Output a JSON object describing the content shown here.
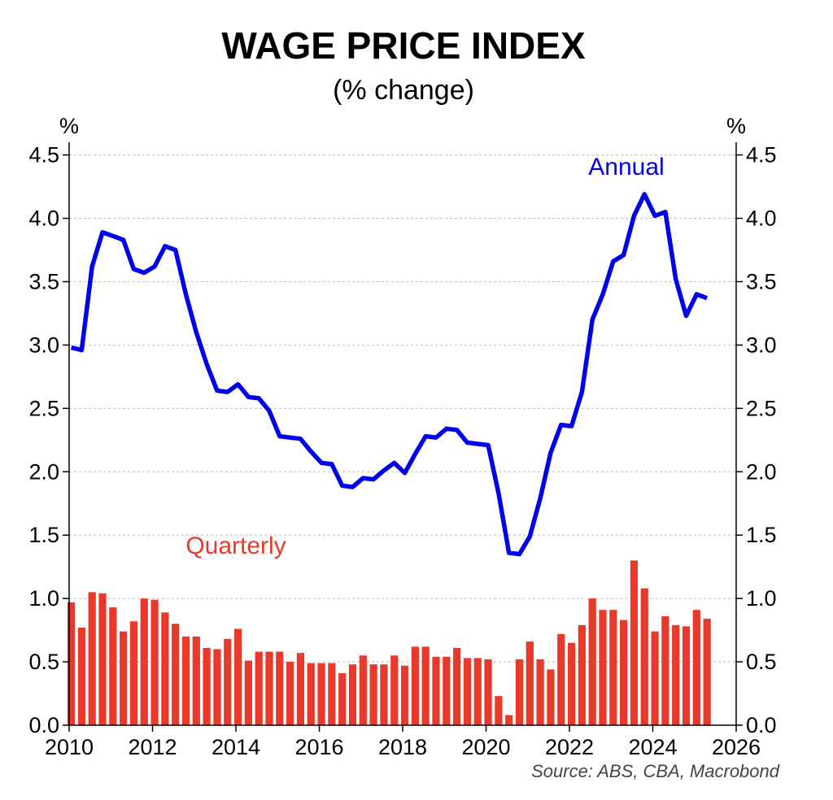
{
  "chart_data": {
    "type": "bar+line",
    "title": "WAGE PRICE INDEX",
    "subtitle": "(% change)",
    "y_unit_left": "%",
    "y_unit_right": "%",
    "ylim": [
      0,
      4.6
    ],
    "yticks": [
      "0.0",
      "0.5",
      "1.0",
      "1.5",
      "2.0",
      "2.5",
      "3.0",
      "3.5",
      "4.0",
      "4.5"
    ],
    "ytick_values": [
      0,
      0.5,
      1.0,
      1.5,
      2.0,
      2.5,
      3.0,
      3.5,
      4.0,
      4.5
    ],
    "xlim": [
      2010,
      2026
    ],
    "xticks": [
      "2010",
      "2012",
      "2014",
      "2016",
      "2018",
      "2020",
      "2022",
      "2024",
      "2026"
    ],
    "xtick_values": [
      2010,
      2012,
      2014,
      2016,
      2018,
      2020,
      2022,
      2024,
      2026
    ],
    "grid": true,
    "source": "Source: ABS, CBA, Macrobond",
    "colors": {
      "annual": "#0000ee",
      "quarterly": "#e8392b",
      "grid": "#bbbbbb"
    },
    "series": [
      {
        "name": "Annual",
        "kind": "line",
        "x": [
          2010.0,
          2010.25,
          2010.5,
          2010.75,
          2011.0,
          2011.25,
          2011.5,
          2011.75,
          2012.0,
          2012.25,
          2012.5,
          2012.75,
          2013.0,
          2013.25,
          2013.5,
          2013.75,
          2014.0,
          2014.25,
          2014.5,
          2014.75,
          2015.0,
          2015.25,
          2015.5,
          2015.75,
          2016.0,
          2016.25,
          2016.5,
          2016.75,
          2017.0,
          2017.25,
          2017.5,
          2017.75,
          2018.0,
          2018.25,
          2018.5,
          2018.75,
          2019.0,
          2019.25,
          2019.5,
          2019.75,
          2020.0,
          2020.25,
          2020.5,
          2020.75,
          2021.0,
          2021.25,
          2021.5,
          2021.75,
          2022.0,
          2022.25,
          2022.5,
          2022.75,
          2023.0,
          2023.25,
          2023.5,
          2023.75,
          2024.0,
          2024.25,
          2024.5,
          2024.75,
          2025.0,
          2025.25
        ],
        "values": [
          2.98,
          2.96,
          3.62,
          3.89,
          3.86,
          3.83,
          3.6,
          3.57,
          3.62,
          3.78,
          3.75,
          3.4,
          3.1,
          2.85,
          2.64,
          2.63,
          2.69,
          2.59,
          2.58,
          2.48,
          2.28,
          2.27,
          2.26,
          2.16,
          2.07,
          2.06,
          1.89,
          1.88,
          1.95,
          1.94,
          2.01,
          2.07,
          1.99,
          2.14,
          2.28,
          2.27,
          2.34,
          2.33,
          2.23,
          2.22,
          2.21,
          1.83,
          1.36,
          1.35,
          1.49,
          1.79,
          2.15,
          2.37,
          2.36,
          2.63,
          3.2,
          3.4,
          3.66,
          3.71,
          4.02,
          4.19,
          4.02,
          4.05,
          3.52,
          3.23,
          3.4,
          3.37
        ]
      },
      {
        "name": "Quarterly",
        "kind": "bar",
        "x": [
          2010.0,
          2010.25,
          2010.5,
          2010.75,
          2011.0,
          2011.25,
          2011.5,
          2011.75,
          2012.0,
          2012.25,
          2012.5,
          2012.75,
          2013.0,
          2013.25,
          2013.5,
          2013.75,
          2014.0,
          2014.25,
          2014.5,
          2014.75,
          2015.0,
          2015.25,
          2015.5,
          2015.75,
          2016.0,
          2016.25,
          2016.5,
          2016.75,
          2017.0,
          2017.25,
          2017.5,
          2017.75,
          2018.0,
          2018.25,
          2018.5,
          2018.75,
          2019.0,
          2019.25,
          2019.5,
          2019.75,
          2020.0,
          2020.25,
          2020.5,
          2020.75,
          2021.0,
          2021.25,
          2021.5,
          2021.75,
          2022.0,
          2022.25,
          2022.5,
          2022.75,
          2023.0,
          2023.25,
          2023.5,
          2023.75,
          2024.0,
          2024.25,
          2024.5,
          2024.75,
          2025.0,
          2025.25
        ],
        "values": [
          0.97,
          0.77,
          1.05,
          1.04,
          0.93,
          0.74,
          0.82,
          1.0,
          0.99,
          0.89,
          0.8,
          0.7,
          0.7,
          0.61,
          0.6,
          0.68,
          0.76,
          0.51,
          0.58,
          0.58,
          0.58,
          0.5,
          0.57,
          0.49,
          0.49,
          0.49,
          0.41,
          0.48,
          0.55,
          0.48,
          0.48,
          0.55,
          0.47,
          0.62,
          0.62,
          0.54,
          0.54,
          0.61,
          0.53,
          0.53,
          0.52,
          0.23,
          0.08,
          0.52,
          0.66,
          0.52,
          0.44,
          0.72,
          0.65,
          0.79,
          1.0,
          0.91,
          0.91,
          0.83,
          1.3,
          1.08,
          0.74,
          0.86,
          0.79,
          0.78,
          0.91,
          0.84
        ]
      }
    ],
    "annotations": {
      "annual_label": "Annual",
      "quarterly_label": "Quarterly"
    }
  }
}
